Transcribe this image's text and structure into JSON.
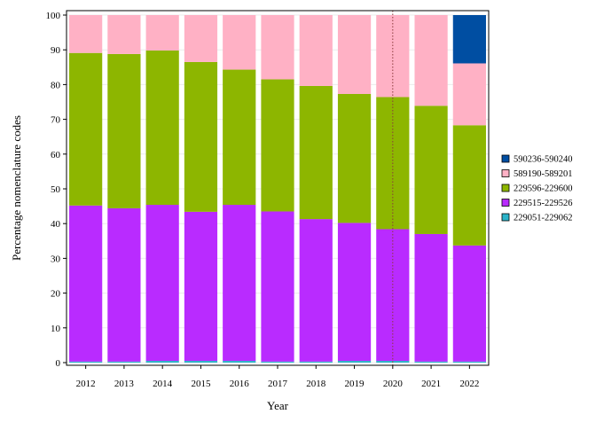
{
  "chart_data": {
    "type": "bar",
    "stacked": true,
    "xlabel": "Year",
    "ylabel": "Percentage nomenclature codes",
    "ylim": [
      0,
      100
    ],
    "yticks": [
      0,
      10,
      20,
      30,
      40,
      50,
      60,
      70,
      80,
      90,
      100
    ],
    "grid": true,
    "legend_position": "right",
    "categories": [
      "2012",
      "2013",
      "2014",
      "2015",
      "2016",
      "2017",
      "2018",
      "2019",
      "2020",
      "2021",
      "2022"
    ],
    "reference_line": {
      "x": "2020",
      "style": "dotted",
      "color": "#8b3a3a"
    },
    "series": [
      {
        "name": "229051-229062",
        "color": "#2bb3c9",
        "values": [
          0.3,
          0.3,
          0.5,
          0.5,
          0.5,
          0.3,
          0.3,
          0.5,
          0.5,
          0.3,
          0.3
        ]
      },
      {
        "name": "229515-229526",
        "color": "#b92bff",
        "values": [
          44.9,
          44.1,
          44.9,
          42.9,
          44.9,
          43.2,
          41.0,
          39.7,
          37.9,
          36.7,
          33.4
        ]
      },
      {
        "name": "229596-229600",
        "color": "#8db600",
        "values": [
          43.9,
          44.4,
          44.4,
          43.1,
          38.9,
          38.0,
          38.3,
          37.1,
          38.0,
          36.9,
          34.6
        ]
      },
      {
        "name": "589190-589201",
        "color": "#ffb1c5",
        "values": [
          10.9,
          11.2,
          10.2,
          13.5,
          15.7,
          18.5,
          20.4,
          22.7,
          23.6,
          26.1,
          17.8
        ]
      },
      {
        "name": "590236-590240",
        "color": "#004ea2",
        "values": [
          0,
          0,
          0,
          0,
          0,
          0,
          0,
          0,
          0,
          0,
          13.9
        ]
      }
    ]
  }
}
